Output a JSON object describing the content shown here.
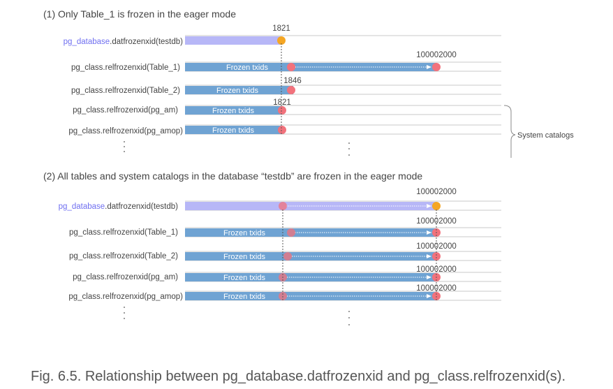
{
  "colors": {
    "database_bar": "#b7b7f7",
    "table_bar": "#6fa3d3",
    "orange_dot": "#f5a623",
    "red_dot": "#f2727c",
    "label_highlight": "#6f6ff0",
    "line": "#c8c8c8"
  },
  "section1": {
    "title": "(1) Only Table_1 is frozen in the eager mode",
    "rows": [
      {
        "prefix": "pg_database",
        "suffix": ".datfrozenxid(testdb)",
        "bar_text": "",
        "value_above": "1821"
      },
      {
        "prefix": "",
        "suffix": "pg_class.relfrozenxid(Table_1)",
        "bar_text": "Frozen txids",
        "value_above": "100002000"
      },
      {
        "prefix": "",
        "suffix": "pg_class.relfrozenxid(Table_2)",
        "bar_text": "Frozen txids",
        "value_above": "1846"
      },
      {
        "prefix": "",
        "suffix": "pg_class.relfrozenxid(pg_am)",
        "bar_text": "Frozen txids",
        "value_above": "1821"
      },
      {
        "prefix": "",
        "suffix": "pg_class.relfrozenxid(pg_amop)",
        "bar_text": "Frozen txids",
        "value_above": ""
      }
    ],
    "side_label": "System catalogs"
  },
  "section2": {
    "title": "(2) All tables and system catalogs in the database “testdb” are frozen in the eager mode",
    "rows": [
      {
        "prefix": "pg_database",
        "suffix": ".datfrozenxid(testdb)",
        "bar_text": "",
        "value_above": "100002000"
      },
      {
        "prefix": "",
        "suffix": "pg_class.relfrozenxid(Table_1)",
        "bar_text": "Frozen txids",
        "value_above": "100002000"
      },
      {
        "prefix": "",
        "suffix": "pg_class.relfrozenxid(Table_2)",
        "bar_text": "Frozen txids",
        "value_above": "100002000"
      },
      {
        "prefix": "",
        "suffix": "pg_class.relfrozenxid(pg_am)",
        "bar_text": "Frozen txids",
        "value_above": "100002000"
      },
      {
        "prefix": "",
        "suffix": "pg_class.relfrozenxid(pg_amop)",
        "bar_text": "Frozen txids",
        "value_above": "100002000"
      }
    ]
  },
  "caption": "Fig. 6.5. Relationship between pg_database.datfrozenxid and pg_class.relfrozenxid(s)."
}
